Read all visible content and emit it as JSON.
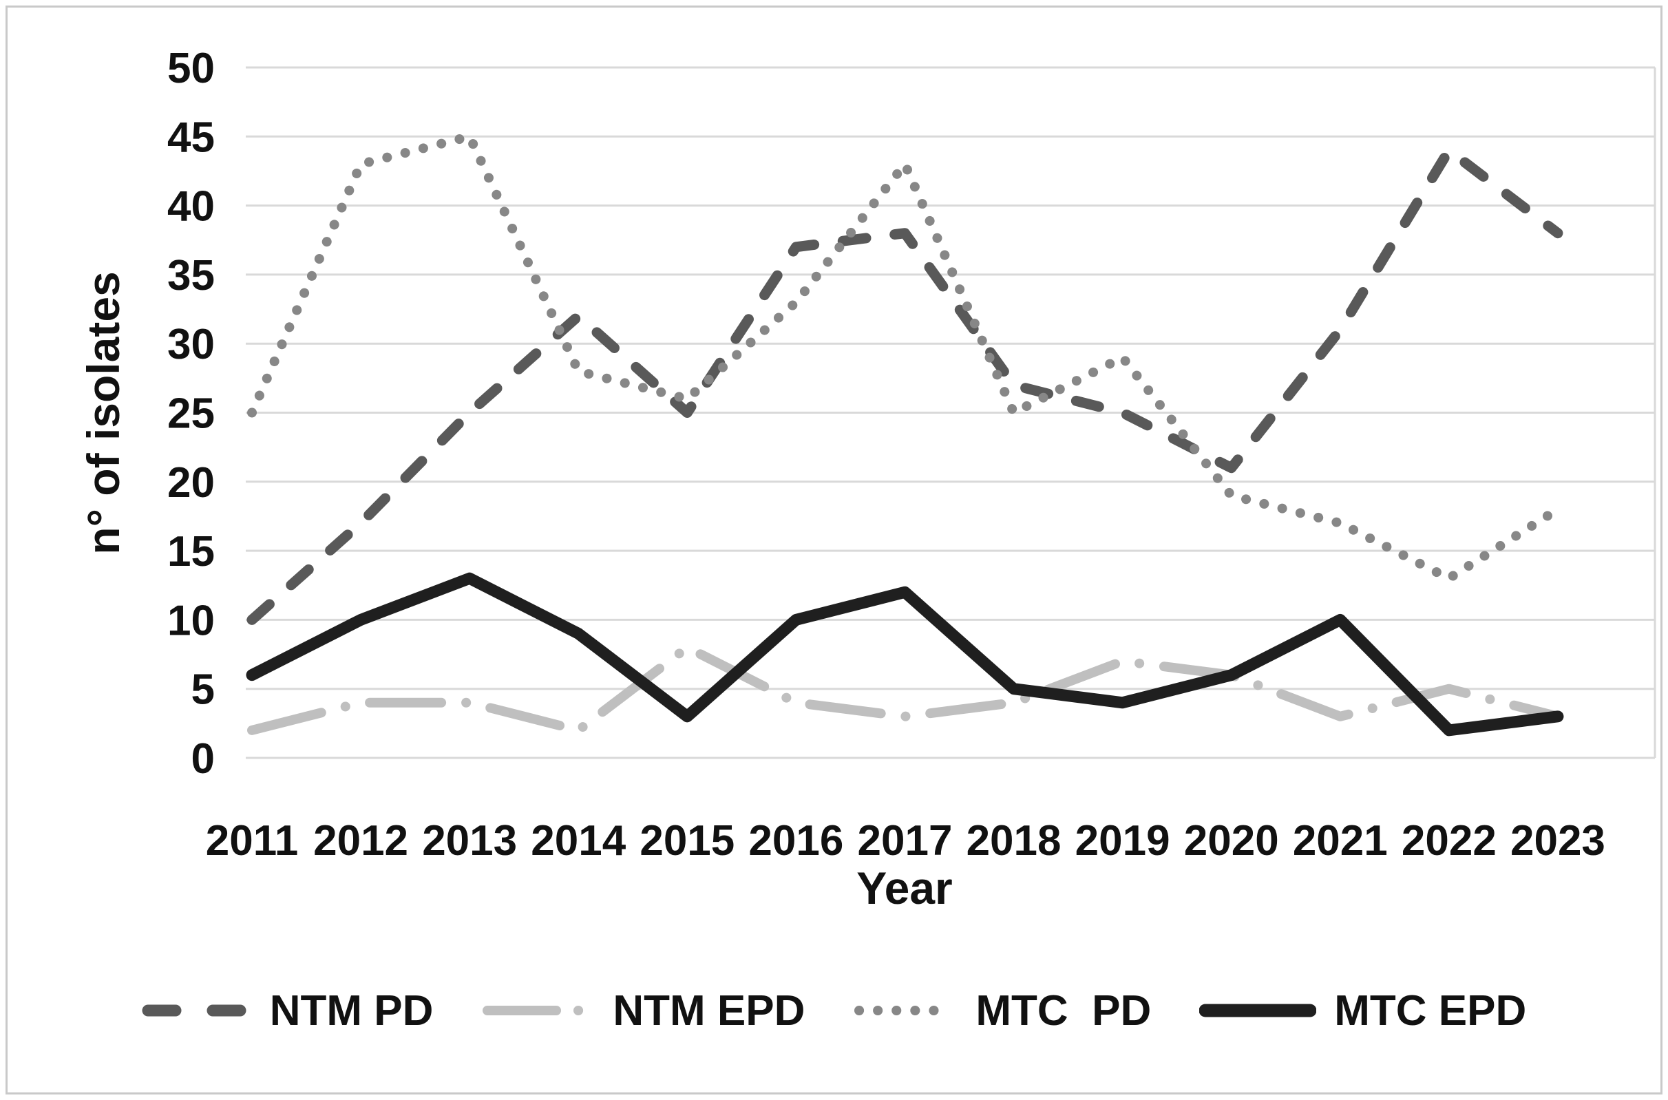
{
  "chart_data": {
    "type": "line",
    "title": "",
    "xlabel": "Year",
    "ylabel": "n° of isolates",
    "categories": [
      "2011",
      "2012",
      "2013",
      "2014",
      "2015",
      "2016",
      "2017",
      "2018",
      "2019",
      "2020",
      "2021",
      "2022",
      "2023"
    ],
    "series": [
      {
        "name": "NTM PD",
        "values": [
          10,
          17,
          25,
          32,
          25,
          37,
          38,
          27,
          25,
          21,
          31,
          44,
          38
        ],
        "color": "#595959",
        "style": "dashed"
      },
      {
        "name": "NTM EPD",
        "values": [
          2,
          4,
          4,
          2,
          8,
          4,
          3,
          4,
          7,
          6,
          3,
          5,
          3
        ],
        "color": "#bfbfbf",
        "style": "dashdot"
      },
      {
        "name": "MTC  PD",
        "values": [
          25,
          43,
          45,
          28,
          26,
          33,
          43,
          25,
          29,
          19,
          17,
          13,
          18
        ],
        "color": "#878787",
        "style": "dotted"
      },
      {
        "name": "MTC EPD",
        "values": [
          6,
          10,
          13,
          9,
          3,
          10,
          12,
          5,
          4,
          6,
          10,
          2,
          3
        ],
        "color": "#1f1f1f",
        "style": "solid"
      }
    ],
    "ylim": [
      0,
      50
    ],
    "ytick_step": 5,
    "y_ticks": [
      0,
      5,
      10,
      15,
      20,
      25,
      30,
      35,
      40,
      45,
      50
    ],
    "grid": true,
    "legend_position": "bottom"
  },
  "colors": {
    "gridline": "#d9d9d9",
    "plot_right_border": "#d9d9d9",
    "figure_border": "#c9c9c9",
    "text": "#111111"
  }
}
